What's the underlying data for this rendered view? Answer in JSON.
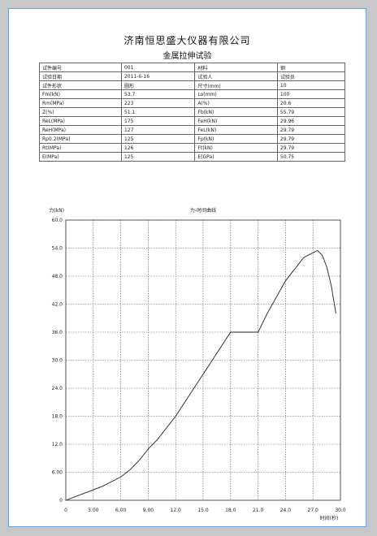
{
  "report": {
    "company": "济南恒思盛大仪器有限公司",
    "title": "金属拉伸试验"
  },
  "info_table": [
    [
      "试件编号",
      "001",
      "材料",
      "钢"
    ],
    [
      "试验日期",
      "2011-6-16",
      "试验人",
      "试验员"
    ],
    [
      "试件形状",
      "圆形",
      "尺寸(mm)",
      "10"
    ],
    [
      "Fm(kN)",
      "53.7",
      "Lo(mm)",
      "100"
    ],
    [
      "Rm(MPa)",
      "223",
      "A(%)",
      "20.6"
    ],
    [
      "Z(%)",
      "51.1",
      "Fb(kN)",
      "55.79"
    ],
    [
      "ReL(MPa)",
      "175",
      "FeH(kN)",
      "29.96"
    ],
    [
      "ReH(MPa)",
      "127",
      "FeL(kN)",
      "29.79"
    ],
    [
      "Rp0.2(MPa)",
      "125",
      "Fp(kN)",
      "29.79"
    ],
    [
      "Rt(MPa)",
      "126",
      "Ft(kN)",
      "29.79"
    ],
    [
      "E(MPa)",
      "125",
      "E(GPa)",
      "50.75"
    ]
  ],
  "chart_data": {
    "type": "line",
    "title": "力-时间曲线",
    "ylabel": "力(kN)",
    "xlabel": "时间(秒)",
    "xlim": [
      0,
      30
    ],
    "ylim": [
      0,
      60
    ],
    "x_ticks": [
      0,
      3,
      6,
      9,
      12,
      15,
      18,
      21,
      24,
      27,
      30
    ],
    "x_tick_labels": [
      "0",
      "3.00",
      "6.00",
      "9.00",
      "12.0",
      "15.0",
      "18.0",
      "21.0",
      "24.0",
      "27.0",
      "30.0"
    ],
    "y_ticks": [
      0,
      6,
      12,
      18,
      24,
      30,
      36,
      42,
      48,
      54,
      60
    ],
    "y_tick_labels": [
      "0",
      "6.00",
      "12.0",
      "18.0",
      "24.0",
      "30.0",
      "36.0",
      "42.0",
      "48.0",
      "54.0",
      "60.0"
    ],
    "grid": true,
    "series": [
      {
        "color": "#222222",
        "x": [
          0,
          2,
          4,
          6,
          7,
          8,
          9,
          10,
          12,
          14,
          16,
          18,
          21,
          22,
          24,
          26,
          27,
          27.5,
          28,
          28.5,
          29,
          29.5
        ],
        "y": [
          0,
          1.5,
          3,
          5,
          6.5,
          8.5,
          11,
          13,
          18,
          24,
          30,
          36,
          36,
          40,
          47,
          52,
          53,
          53.5,
          52.5,
          50,
          46,
          40
        ]
      }
    ]
  }
}
